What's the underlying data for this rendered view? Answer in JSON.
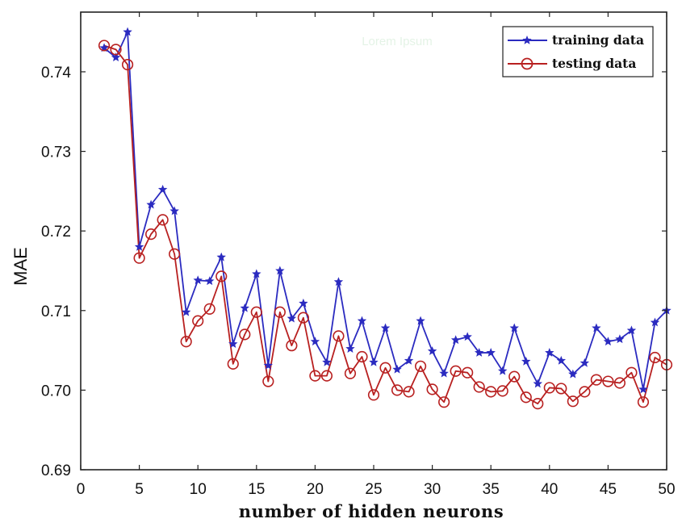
{
  "chart_data": {
    "type": "line",
    "title": "",
    "watermark": "Lorem Ipsum",
    "xlabel": "number of hidden neurons",
    "ylabel": "MAE",
    "xlim": [
      0,
      50
    ],
    "ylim": [
      0.69,
      0.7475
    ],
    "xticks": [
      0,
      5,
      10,
      15,
      20,
      25,
      30,
      35,
      40,
      45,
      50
    ],
    "yticks": [
      0.69,
      0.7,
      0.71,
      0.72,
      0.73,
      0.74
    ],
    "ytick_labels": [
      "0.69",
      "0.70",
      "0.71",
      "0.72",
      "0.73",
      "0.74"
    ],
    "grid": false,
    "legend_position": "top-right",
    "x": [
      2,
      3,
      4,
      5,
      6,
      7,
      8,
      9,
      10,
      11,
      12,
      13,
      14,
      15,
      16,
      17,
      18,
      19,
      20,
      21,
      22,
      23,
      24,
      25,
      26,
      27,
      28,
      29,
      30,
      31,
      32,
      33,
      34,
      35,
      36,
      37,
      38,
      39,
      40,
      41,
      42,
      43,
      44,
      45,
      46,
      47,
      48,
      49,
      50
    ],
    "series": [
      {
        "name": "training data",
        "color": "#2b2bc0",
        "marker": "star",
        "values": [
          0.743,
          0.7418,
          0.745,
          0.718,
          0.7233,
          0.7252,
          0.7225,
          0.7098,
          0.7138,
          0.7137,
          0.7167,
          0.7058,
          0.7103,
          0.7146,
          0.7031,
          0.715,
          0.709,
          0.7109,
          0.7061,
          0.7035,
          0.7136,
          0.7052,
          0.7087,
          0.7035,
          0.7078,
          0.7026,
          0.7037,
          0.7087,
          0.7049,
          0.7021,
          0.7063,
          0.7067,
          0.7047,
          0.7047,
          0.7024,
          0.7078,
          0.7036,
          0.7008,
          0.7047,
          0.7037,
          0.702,
          0.7034,
          0.7078,
          0.7061,
          0.7064,
          0.7075,
          0.7001,
          0.7085,
          0.71
        ]
      },
      {
        "name": "testing data",
        "color": "#b82020",
        "marker": "circle",
        "values": [
          0.7433,
          0.7428,
          0.7409,
          0.7166,
          0.7196,
          0.7214,
          0.7171,
          0.7061,
          0.7087,
          0.7102,
          0.7143,
          0.7033,
          0.707,
          0.7098,
          0.7011,
          0.7098,
          0.7056,
          0.7091,
          0.7018,
          0.7018,
          0.7068,
          0.7021,
          0.7042,
          0.6994,
          0.7028,
          0.7,
          0.6998,
          0.703,
          0.7001,
          0.6985,
          0.7024,
          0.7022,
          0.7004,
          0.6998,
          0.6999,
          0.7017,
          0.6991,
          0.6983,
          0.7003,
          0.7002,
          0.6986,
          0.6998,
          0.7013,
          0.7011,
          0.7009,
          0.7022,
          0.6985,
          0.7041,
          0.7032
        ]
      }
    ]
  }
}
